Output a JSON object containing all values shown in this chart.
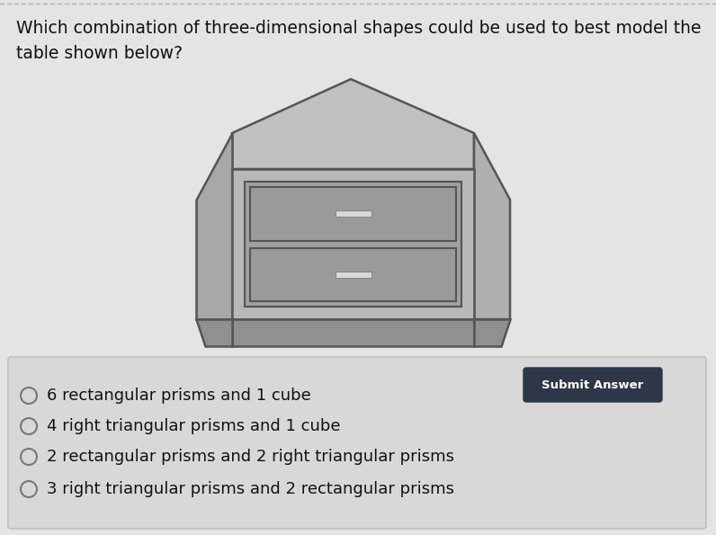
{
  "background_color": "#e4e4e4",
  "question_text": "Which combination of three-dimensional shapes could be used to best model the\ntable shown below?",
  "question_fontsize": 13.5,
  "options": [
    "6 rectangular prisms and 1 cube",
    "4 right triangular prisms and 1 cube",
    "2 rectangular prisms and 2 right triangular prisms",
    "3 right triangular prisms and 2 rectangular prisms"
  ],
  "options_fontsize": 13,
  "submit_button_text": "Submit Answer",
  "submit_button_color": "#2d3748",
  "submit_text_color": "#ffffff",
  "radio_color": "#888888",
  "dotted_line_color": "#b0b0b0",
  "cab_top_fill": "#c0c0c0",
  "cab_top_edge": "#555555",
  "cab_left_fill": "#a8a8a8",
  "cab_left_edge": "#555555",
  "cab_right_fill": "#b0b0b0",
  "cab_right_edge": "#555555",
  "cab_front_fill": "#b8b8b8",
  "cab_front_edge": "#555555",
  "cab_bottom_fill": "#909090",
  "cab_bottom_edge": "#555555",
  "cab_inner_fill": "#a0a0a0",
  "cab_drawer_fill": "#9a9a9a",
  "cab_drawer_edge": "#555555",
  "cab_handle_fill": "#d8d8d8",
  "cab_handle_edge": "#888888",
  "options_box_bg": "#d8d8d8",
  "options_box_edge": "#c0c0c0"
}
